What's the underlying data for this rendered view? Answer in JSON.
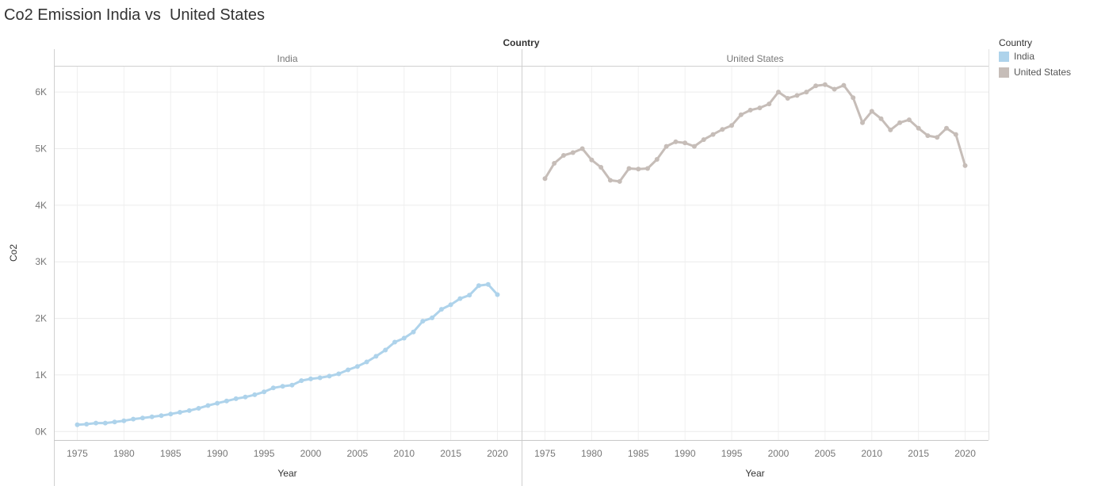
{
  "title": "Co2 Emission India vs  United States",
  "legend": {
    "title": "Country",
    "items": [
      {
        "label": "India",
        "color": "#aed3eb"
      },
      {
        "label": "United States",
        "color": "#c6bdb8"
      }
    ]
  },
  "chart_data": {
    "type": "line",
    "column_header": "Country",
    "panes": [
      "India",
      "United States"
    ],
    "xlabel": "Year",
    "ylabel": "Co2",
    "xlim": [
      1972.5,
      2022.5
    ],
    "ylim": [
      -150,
      6450
    ],
    "x_ticks": [
      1975,
      1980,
      1985,
      1990,
      1995,
      2000,
      2005,
      2010,
      2015,
      2020
    ],
    "y_ticks": [
      {
        "value": 0,
        "label": "0K"
      },
      {
        "value": 1000,
        "label": "1K"
      },
      {
        "value": 2000,
        "label": "2K"
      },
      {
        "value": 3000,
        "label": "3K"
      },
      {
        "value": 4000,
        "label": "4K"
      },
      {
        "value": 5000,
        "label": "5K"
      },
      {
        "value": 6000,
        "label": "6K"
      }
    ],
    "grid": true,
    "x": [
      1975,
      1976,
      1977,
      1978,
      1979,
      1980,
      1981,
      1982,
      1983,
      1984,
      1985,
      1986,
      1987,
      1988,
      1989,
      1990,
      1991,
      1992,
      1993,
      1994,
      1995,
      1996,
      1997,
      1998,
      1999,
      2000,
      2001,
      2002,
      2003,
      2004,
      2005,
      2006,
      2007,
      2008,
      2009,
      2010,
      2011,
      2012,
      2013,
      2014,
      2015,
      2016,
      2017,
      2018,
      2019,
      2020
    ],
    "series": [
      {
        "name": "India",
        "color": "#aed3eb",
        "values": [
          120,
          130,
          150,
          150,
          170,
          190,
          220,
          240,
          260,
          280,
          310,
          340,
          370,
          410,
          460,
          500,
          540,
          580,
          610,
          650,
          700,
          770,
          800,
          820,
          900,
          930,
          950,
          980,
          1020,
          1090,
          1150,
          1230,
          1330,
          1440,
          1580,
          1650,
          1760,
          1950,
          2010,
          2160,
          2240,
          2350,
          2410,
          2580,
          2600,
          2420
        ]
      },
      {
        "name": "United States",
        "color": "#c6bdb8",
        "values": [
          4470,
          4740,
          4880,
          4930,
          5000,
          4800,
          4670,
          4440,
          4420,
          4650,
          4640,
          4650,
          4810,
          5040,
          5120,
          5100,
          5040,
          5160,
          5250,
          5340,
          5410,
          5600,
          5680,
          5720,
          5790,
          6000,
          5890,
          5940,
          6000,
          6110,
          6130,
          6050,
          6120,
          5900,
          5460,
          5660,
          5530,
          5330,
          5460,
          5510,
          5360,
          5230,
          5200,
          5360,
          5250,
          4700
        ]
      }
    ]
  }
}
